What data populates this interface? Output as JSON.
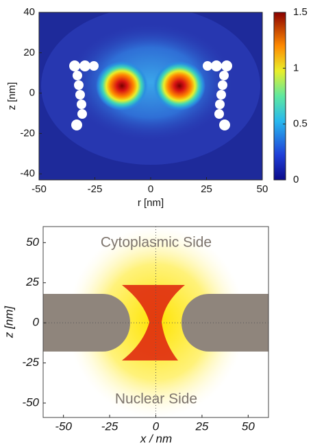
{
  "chart_data": [
    {
      "type": "heatmap",
      "x_label": "r [nm]",
      "y_label": "z [nm]",
      "xlim": [
        -50,
        50
      ],
      "ylim": [
        -43,
        40
      ],
      "xticks": [
        -50,
        -25,
        0,
        25,
        50
      ],
      "yticks": [
        -40,
        -20,
        0,
        20,
        40
      ],
      "colorbar": {
        "clim": [
          0,
          1.5
        ],
        "ticks": [
          0,
          0.5,
          1,
          1.5
        ]
      }
    },
    {
      "type": "heatmap",
      "x_label": "x / nm",
      "y_label": "z [nm]",
      "xlim": [
        -61,
        61
      ],
      "ylim": [
        -59,
        60
      ],
      "xticks": [
        -50,
        -25,
        0,
        25,
        50
      ],
      "yticks": [
        -50,
        -25,
        0,
        25,
        50
      ],
      "annotations": [
        "Cytoplasmic Side",
        "Nuclear Side"
      ]
    }
  ]
}
